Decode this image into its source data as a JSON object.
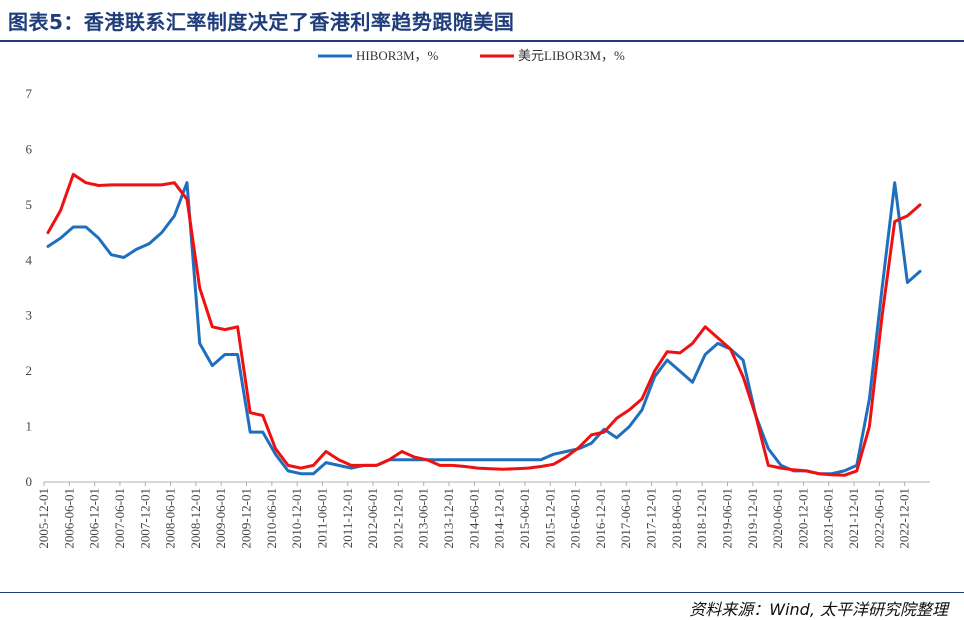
{
  "title": "图表5：香港联系汇率制度决定了香港利率趋势跟随美国",
  "source": "资料来源：Wind, 太平洋研究院整理",
  "colors": {
    "hibor": "#1f6fbf",
    "us_libor": "#ee1111",
    "title": "#1f3d7a"
  },
  "chart_data": {
    "type": "line",
    "legend_position": "top-center",
    "ylim": [
      0,
      7
    ],
    "yticks": [
      0,
      1,
      2,
      3,
      4,
      5,
      6,
      7
    ],
    "xlabels": [
      "2005-12-01",
      "2006-06-01",
      "2006-12-01",
      "2007-06-01",
      "2007-12-01",
      "2008-06-01",
      "2008-12-01",
      "2009-06-01",
      "2009-12-01",
      "2010-06-01",
      "2010-12-01",
      "2011-06-01",
      "2011-12-01",
      "2012-06-01",
      "2012-12-01",
      "2013-06-01",
      "2013-12-01",
      "2014-06-01",
      "2014-12-01",
      "2015-06-01",
      "2015-12-01",
      "2016-06-01",
      "2016-12-01",
      "2017-06-01",
      "2017-12-01",
      "2018-06-01",
      "2018-12-01",
      "2019-06-01",
      "2019-12-01",
      "2020-06-01",
      "2020-12-01",
      "2021-06-01",
      "2021-12-01",
      "2022-06-01",
      "2022-12-01"
    ],
    "series": [
      {
        "name": "HIBOR3M，%",
        "values": [
          4.25,
          4.4,
          4.6,
          4.6,
          4.4,
          4.1,
          4.05,
          4.2,
          4.3,
          4.5,
          4.8,
          5.4,
          2.5,
          2.1,
          2.3,
          2.3,
          0.9,
          0.9,
          0.5,
          0.2,
          0.15,
          0.15,
          0.35,
          0.3,
          0.25,
          0.3,
          0.3,
          0.4,
          0.4,
          0.4,
          0.4,
          0.4,
          0.4,
          0.4,
          0.4,
          0.4,
          0.4,
          0.4,
          0.4,
          0.4,
          0.5,
          0.55,
          0.6,
          0.7,
          0.95,
          0.8,
          1.0,
          1.3,
          1.9,
          2.2,
          2.0,
          1.8,
          2.3,
          2.5,
          2.4,
          2.2,
          1.2,
          0.6,
          0.3,
          0.2,
          0.2,
          0.15,
          0.15,
          0.2,
          0.3,
          1.5,
          3.5,
          5.4,
          3.6,
          3.8
        ]
      },
      {
        "name": "美元LIBOR3M，%",
        "values": [
          4.5,
          4.9,
          5.55,
          5.4,
          5.35,
          5.36,
          5.36,
          5.36,
          5.36,
          5.36,
          5.4,
          5.1,
          3.5,
          2.8,
          2.75,
          2.8,
          1.25,
          1.2,
          0.6,
          0.3,
          0.25,
          0.3,
          0.55,
          0.4,
          0.3,
          0.3,
          0.3,
          0.4,
          0.55,
          0.45,
          0.4,
          0.3,
          0.3,
          0.28,
          0.25,
          0.24,
          0.23,
          0.24,
          0.25,
          0.28,
          0.32,
          0.45,
          0.62,
          0.85,
          0.9,
          1.15,
          1.3,
          1.5,
          2.0,
          2.35,
          2.33,
          2.5,
          2.8,
          2.6,
          2.4,
          1.9,
          1.2,
          0.3,
          0.25,
          0.22,
          0.2,
          0.15,
          0.13,
          0.12,
          0.2,
          1.0,
          3.0,
          4.7,
          4.8,
          5.0
        ]
      }
    ]
  }
}
